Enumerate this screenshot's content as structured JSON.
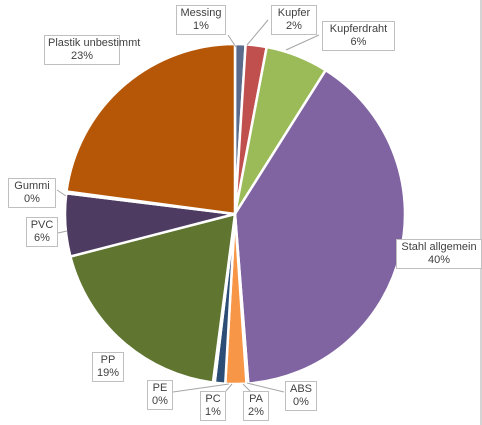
{
  "chart_data": {
    "type": "pie",
    "title": "",
    "slices": [
      {
        "name": "Messing",
        "value": 1,
        "label_value": "1%",
        "color": "#5b6b8c"
      },
      {
        "name": "Kupfer",
        "value": 2,
        "label_value": "2%",
        "color": "#c0504d"
      },
      {
        "name": "Kupferdraht",
        "value": 6,
        "label_value": "6%",
        "color": "#9bbb59"
      },
      {
        "name": "Stahl allgemein",
        "value": 40,
        "label_value": "40%",
        "color": "#8064a2"
      },
      {
        "name": "ABS",
        "value": 0,
        "label_value": "0%",
        "color": "#4bacc6"
      },
      {
        "name": "PA",
        "value": 2,
        "label_value": "2%",
        "color": "#f79646"
      },
      {
        "name": "PC",
        "value": 1,
        "label_value": "1%",
        "color": "#2c4d75"
      },
      {
        "name": "PE",
        "value": 0,
        "label_value": "0%",
        "color": "#772c2a"
      },
      {
        "name": "PP",
        "value": 19,
        "label_value": "19%",
        "color": "#5f7530"
      },
      {
        "name": "PVC",
        "value": 6,
        "label_value": "6%",
        "color": "#4d3b62"
      },
      {
        "name": "Gummi",
        "value": 0,
        "label_value": "0%",
        "color": "#276a7c"
      },
      {
        "name": "Plastik unbestimmt",
        "value": 23,
        "label_value": "23%",
        "color": "#b65708"
      }
    ]
  }
}
